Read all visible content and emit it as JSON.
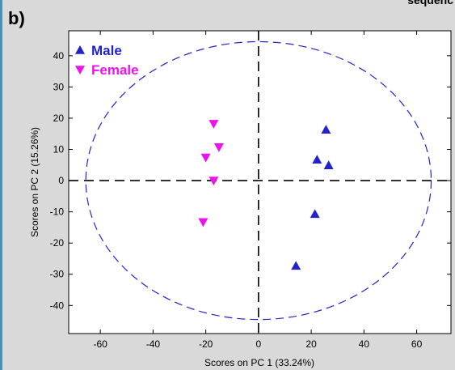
{
  "panel_label": "b)",
  "top_cut_text": "sequenc",
  "chart_data": {
    "type": "scatter",
    "title": "",
    "xlabel": "Scores on PC 1 (33.24%)",
    "ylabel": "Scores on PC 2 (15.26%)",
    "xlim": [
      -72,
      73
    ],
    "ylim": [
      -49,
      48
    ],
    "xticks": [
      -60,
      -40,
      -20,
      0,
      20,
      40,
      60
    ],
    "yticks": [
      -40,
      -30,
      -20,
      -10,
      0,
      10,
      20,
      30,
      40
    ],
    "grid": false,
    "legend_position": "top-left",
    "series": [
      {
        "name": "Male",
        "marker": "triangle-up",
        "color": "#2222cc",
        "points": [
          [
            25.6,
            16.3
          ],
          [
            22.2,
            6.7
          ],
          [
            26.6,
            4.9
          ],
          [
            21.4,
            -10.7
          ],
          [
            14.2,
            -27.3
          ]
        ]
      },
      {
        "name": "Female",
        "marker": "triangle-down",
        "color": "#ee11ee",
        "points": [
          [
            -17,
            18.2
          ],
          [
            -15,
            10.7
          ],
          [
            -20,
            7.4
          ],
          [
            -17,
            0
          ],
          [
            -21,
            -13.3
          ]
        ]
      }
    ],
    "ellipse": {
      "cx": 0,
      "cy": 0,
      "rx": 65.5,
      "ry": 44.5,
      "color": "#2222cc",
      "style": "dashed"
    },
    "reference_lines": {
      "x": 0,
      "y": 0,
      "color": "#000000",
      "style": "dashed"
    }
  }
}
